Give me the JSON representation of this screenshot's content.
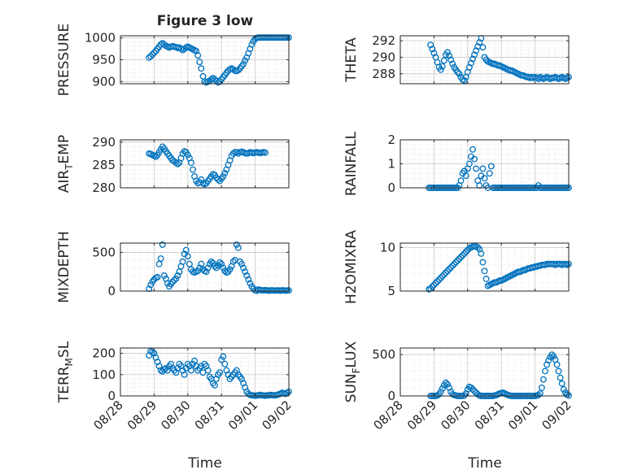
{
  "figure": {
    "title": "Figure 3 low",
    "xlabel": "Time",
    "x_tick_labels": [
      "08/28",
      "08/29",
      "08/30",
      "08/31",
      "09/01",
      "09/02"
    ],
    "marker_color": "#0072BD"
  },
  "chart_data": [
    {
      "type": "scatter",
      "ylabel": "PRESSURE",
      "ylim": [
        895,
        1005
      ],
      "yticks": [
        900,
        950,
        1000
      ],
      "grid": true,
      "x": [
        0.85,
        0.9,
        0.95,
        1.0,
        1.05,
        1.1,
        1.15,
        1.2,
        1.25,
        1.3,
        1.35,
        1.4,
        1.45,
        1.5,
        1.55,
        1.6,
        1.65,
        1.7,
        1.75,
        1.8,
        1.85,
        1.9,
        1.95,
        2.0,
        2.05,
        2.1,
        2.15,
        2.2,
        2.25,
        2.3,
        2.35,
        2.4,
        2.45,
        2.5,
        2.55,
        2.6,
        2.65,
        2.7,
        2.75,
        2.8,
        2.85,
        2.9,
        2.95,
        3.0,
        3.05,
        3.1,
        3.15,
        3.2,
        3.25,
        3.3,
        3.35,
        3.4,
        3.45,
        3.5,
        3.55,
        3.6,
        3.65,
        3.7,
        3.75,
        3.8,
        3.85,
        3.9,
        3.95,
        4.0,
        4.05,
        4.1,
        4.15,
        4.2,
        4.25,
        4.3,
        4.35,
        4.4,
        4.45,
        4.5,
        4.55,
        4.6,
        4.65,
        4.7,
        4.75,
        4.8,
        4.85,
        4.9,
        4.95,
        5.0
      ],
      "y": [
        955,
        958,
        962,
        966,
        970,
        975,
        980,
        985,
        988,
        985,
        982,
        980,
        978,
        980,
        981,
        980,
        979,
        977,
        978,
        975,
        972,
        975,
        978,
        980,
        978,
        976,
        974,
        972,
        970,
        960,
        945,
        930,
        912,
        900,
        898,
        900,
        902,
        905,
        908,
        905,
        902,
        898,
        900,
        905,
        910,
        915,
        920,
        925,
        928,
        930,
        928,
        925,
        924,
        926,
        930,
        935,
        940,
        948,
        955,
        965,
        975,
        985,
        992,
        998,
        1000,
        1001,
        1001,
        1001,
        1001,
        1001,
        1001,
        1001,
        1001,
        1001,
        1001,
        1001,
        1001,
        1001,
        1001,
        1001,
        1001,
        1001,
        1001,
        1001
      ]
    },
    {
      "type": "scatter",
      "ylabel": "THETA",
      "ylim": [
        286.8,
        292.6
      ],
      "yticks": [
        288,
        290,
        292
      ],
      "grid": true,
      "x": [
        0.9,
        0.95,
        1.0,
        1.05,
        1.1,
        1.15,
        1.2,
        1.25,
        1.3,
        1.35,
        1.4,
        1.45,
        1.5,
        1.55,
        1.6,
        1.65,
        1.7,
        1.75,
        1.8,
        1.85,
        1.9,
        1.95,
        2.0,
        2.05,
        2.1,
        2.15,
        2.2,
        2.25,
        2.3,
        2.35,
        2.4,
        2.45,
        2.5,
        2.55,
        2.6,
        2.65,
        2.7,
        2.75,
        2.8,
        2.85,
        2.9,
        2.95,
        3.0,
        3.05,
        3.1,
        3.15,
        3.2,
        3.25,
        3.3,
        3.35,
        3.4,
        3.45,
        3.5,
        3.55,
        3.6,
        3.65,
        3.7,
        3.75,
        3.8,
        3.85,
        3.9,
        3.95,
        4.0,
        4.05,
        4.1,
        4.15,
        4.2,
        4.25,
        4.3,
        4.35,
        4.4,
        4.45,
        4.5,
        4.55,
        4.6,
        4.65,
        4.7,
        4.75,
        4.8,
        4.85,
        4.9,
        4.95,
        5.0
      ],
      "y": [
        291.5,
        291.0,
        290.5,
        290.0,
        289.4,
        288.8,
        288.5,
        288.9,
        289.6,
        290.3,
        290.6,
        290.2,
        289.7,
        289.2,
        288.8,
        288.5,
        288.2,
        288.0,
        287.6,
        287.3,
        287.2,
        287.6,
        288.2,
        288.8,
        289.3,
        289.8,
        290.3,
        290.8,
        291.3,
        291.8,
        292.3,
        291.2,
        290.0,
        289.7,
        289.5,
        289.4,
        289.3,
        289.2,
        289.2,
        289.1,
        289.0,
        289.0,
        288.9,
        288.8,
        288.7,
        288.6,
        288.5,
        288.4,
        288.4,
        288.3,
        288.2,
        288.1,
        288.0,
        287.9,
        287.8,
        287.8,
        287.7,
        287.6,
        287.6,
        287.5,
        287.6,
        287.5,
        287.6,
        287.5,
        287.4,
        287.6,
        287.5,
        287.4,
        287.5,
        287.6,
        287.5,
        287.4,
        287.5,
        287.5,
        287.6,
        287.5,
        287.4,
        287.5,
        287.6,
        287.5,
        287.4,
        287.5,
        287.6
      ]
    },
    {
      "type": "scatter",
      "ylabel": "AIR_TEMP",
      "ylim": [
        280,
        290.5
      ],
      "yticks": [
        280,
        285,
        290
      ],
      "grid": true,
      "x": [
        0.85,
        0.9,
        0.95,
        1.0,
        1.05,
        1.1,
        1.15,
        1.2,
        1.25,
        1.3,
        1.35,
        1.4,
        1.45,
        1.5,
        1.55,
        1.6,
        1.65,
        1.7,
        1.75,
        1.8,
        1.85,
        1.9,
        1.95,
        2.0,
        2.05,
        2.1,
        2.15,
        2.2,
        2.25,
        2.3,
        2.35,
        2.4,
        2.45,
        2.5,
        2.55,
        2.6,
        2.65,
        2.7,
        2.75,
        2.8,
        2.85,
        2.9,
        2.95,
        3.0,
        3.05,
        3.1,
        3.15,
        3.2,
        3.25,
        3.3,
        3.35,
        3.4,
        3.45,
        3.5,
        3.55,
        3.6,
        3.65,
        3.7,
        3.75,
        3.8,
        3.85,
        3.9,
        3.95,
        4.0,
        4.05,
        4.1,
        4.15,
        4.2,
        4.25,
        4.3
      ],
      "y": [
        287.5,
        287.4,
        287.2,
        287.0,
        286.8,
        287.2,
        287.8,
        288.4,
        289.0,
        288.6,
        288.0,
        287.5,
        287.0,
        286.5,
        286.0,
        285.8,
        285.5,
        285.2,
        285.5,
        286.5,
        287.5,
        288.0,
        287.8,
        287.2,
        286.5,
        285.5,
        284.0,
        282.5,
        281.5,
        281.0,
        281.2,
        281.8,
        281.0,
        280.8,
        281.0,
        281.5,
        282.0,
        282.5,
        283.0,
        282.8,
        282.2,
        281.8,
        281.5,
        282.0,
        282.5,
        283.2,
        284.0,
        285.0,
        286.0,
        287.0,
        287.5,
        287.8,
        287.8,
        287.5,
        287.8,
        287.9,
        287.8,
        287.6,
        287.5,
        287.6,
        287.8,
        287.7,
        287.6,
        287.7,
        287.8,
        287.7,
        287.6,
        287.7,
        287.8,
        287.7
      ]
    },
    {
      "type": "scatter",
      "ylabel": "RAINFALL",
      "ylim": [
        0,
        2
      ],
      "yticks": [
        0,
        1,
        2
      ],
      "grid": true,
      "x": [
        0.85,
        0.9,
        0.95,
        1.0,
        1.05,
        1.1,
        1.15,
        1.2,
        1.25,
        1.3,
        1.35,
        1.4,
        1.45,
        1.5,
        1.55,
        1.6,
        1.65,
        1.7,
        1.75,
        1.8,
        1.85,
        1.9,
        1.95,
        2.0,
        2.05,
        2.1,
        2.15,
        2.2,
        2.25,
        2.3,
        2.35,
        2.4,
        2.45,
        2.5,
        2.55,
        2.6,
        2.65,
        2.7,
        2.75,
        2.8,
        2.85,
        2.9,
        2.95,
        3.0,
        3.05,
        3.1,
        3.15,
        3.2,
        3.25,
        3.3,
        3.35,
        3.4,
        3.45,
        3.5,
        3.55,
        3.6,
        3.65,
        3.7,
        3.75,
        3.8,
        3.85,
        3.9,
        3.95,
        4.0,
        4.05,
        4.1,
        4.15,
        4.2,
        4.25,
        4.3,
        4.35,
        4.4,
        4.45,
        4.5,
        4.55,
        4.6,
        4.65,
        4.7,
        4.75,
        4.8,
        4.85,
        4.9,
        4.95,
        5.0
      ],
      "y": [
        0,
        0,
        0,
        0,
        0,
        0,
        0,
        0,
        0,
        0,
        0,
        0,
        0,
        0,
        0,
        0,
        0,
        0,
        0.1,
        0.3,
        0.6,
        0.7,
        0.5,
        0.8,
        1.0,
        1.3,
        1.6,
        1.2,
        0.8,
        0.3,
        0.1,
        0.5,
        0.8,
        0.4,
        0.1,
        0,
        0.6,
        0.9,
        0,
        0,
        0,
        0,
        0,
        0,
        0,
        0,
        0,
        0,
        0,
        0,
        0,
        0,
        0,
        0,
        0,
        0,
        0,
        0,
        0,
        0,
        0,
        0,
        0,
        0,
        0,
        0.1,
        0,
        0,
        0,
        0,
        0,
        0,
        0,
        0,
        0,
        0,
        0,
        0,
        0,
        0,
        0,
        0,
        0,
        0
      ]
    },
    {
      "type": "scatter",
      "ylabel": "MIXDEPTH",
      "ylim": [
        0,
        620
      ],
      "yticks": [
        0,
        500
      ],
      "grid": true,
      "x": [
        0.85,
        0.9,
        0.95,
        1.0,
        1.05,
        1.1,
        1.15,
        1.2,
        1.25,
        1.3,
        1.35,
        1.4,
        1.45,
        1.5,
        1.55,
        1.6,
        1.65,
        1.7,
        1.75,
        1.8,
        1.85,
        1.9,
        1.95,
        2.0,
        2.05,
        2.1,
        2.15,
        2.2,
        2.25,
        2.3,
        2.35,
        2.4,
        2.45,
        2.5,
        2.55,
        2.6,
        2.65,
        2.7,
        2.75,
        2.8,
        2.85,
        2.9,
        2.95,
        3.0,
        3.05,
        3.1,
        3.15,
        3.2,
        3.25,
        3.3,
        3.35,
        3.4,
        3.45,
        3.5,
        3.55,
        3.6,
        3.65,
        3.7,
        3.75,
        3.8,
        3.85,
        3.9,
        3.95,
        4.0,
        4.05,
        4.1,
        4.15,
        4.2,
        4.25,
        4.3,
        4.35,
        4.4,
        4.45,
        4.5,
        4.55,
        4.6,
        4.65,
        4.7,
        4.75,
        4.8,
        4.85,
        4.9,
        4.95,
        5.0
      ],
      "y": [
        30,
        80,
        120,
        150,
        170,
        180,
        350,
        420,
        600,
        200,
        160,
        100,
        60,
        90,
        120,
        140,
        160,
        200,
        250,
        320,
        380,
        480,
        530,
        450,
        350,
        280,
        250,
        240,
        250,
        260,
        300,
        350,
        280,
        260,
        250,
        300,
        350,
        380,
        360,
        320,
        300,
        330,
        370,
        350,
        300,
        260,
        240,
        250,
        280,
        320,
        380,
        400,
        600,
        560,
        380,
        350,
        300,
        250,
        200,
        150,
        100,
        60,
        30,
        10,
        5,
        20,
        15,
        10,
        8,
        12,
        10,
        5,
        8,
        10,
        7,
        6,
        9,
        8,
        5,
        10,
        8,
        6,
        7,
        9
      ]
    },
    {
      "type": "scatter",
      "ylabel": "H2OMIXRA",
      "ylim": [
        5,
        10.5
      ],
      "yticks": [
        5,
        10
      ],
      "grid": true,
      "x": [
        0.85,
        0.9,
        0.95,
        1.0,
        1.05,
        1.1,
        1.15,
        1.2,
        1.25,
        1.3,
        1.35,
        1.4,
        1.45,
        1.5,
        1.55,
        1.6,
        1.65,
        1.7,
        1.75,
        1.8,
        1.85,
        1.9,
        1.95,
        2.0,
        2.05,
        2.1,
        2.15,
        2.2,
        2.25,
        2.3,
        2.35,
        2.4,
        2.45,
        2.5,
        2.55,
        2.6,
        2.65,
        2.7,
        2.75,
        2.8,
        2.85,
        2.9,
        2.95,
        3.0,
        3.05,
        3.1,
        3.15,
        3.2,
        3.25,
        3.3,
        3.35,
        3.4,
        3.45,
        3.5,
        3.55,
        3.6,
        3.65,
        3.7,
        3.75,
        3.8,
        3.85,
        3.9,
        3.95,
        4.0,
        4.05,
        4.1,
        4.15,
        4.2,
        4.25,
        4.3,
        4.35,
        4.4,
        4.45,
        4.5,
        4.55,
        4.6,
        4.65,
        4.7,
        4.75,
        4.8,
        4.85,
        4.9,
        4.95,
        5.0
      ],
      "y": [
        5.2,
        5.3,
        5.5,
        5.7,
        5.9,
        6.1,
        6.3,
        6.5,
        6.7,
        6.9,
        7.1,
        7.3,
        7.5,
        7.7,
        7.9,
        8.1,
        8.3,
        8.5,
        8.7,
        8.9,
        9.1,
        9.3,
        9.5,
        9.7,
        9.9,
        10.0,
        10.1,
        10.2,
        10.1,
        10.0,
        9.8,
        9.3,
        8.3,
        7.3,
        6.4,
        5.6,
        5.7,
        5.8,
        5.9,
        6.0,
        6.0,
        6.1,
        6.2,
        6.2,
        6.3,
        6.4,
        6.5,
        6.6,
        6.7,
        6.8,
        6.9,
        7.0,
        7.1,
        7.2,
        7.2,
        7.3,
        7.4,
        7.4,
        7.5,
        7.6,
        7.6,
        7.7,
        7.7,
        7.8,
        7.8,
        7.9,
        7.9,
        8.0,
        8.0,
        8.0,
        8.1,
        8.1,
        8.1,
        8.1,
        8.1,
        8.0,
        8.1,
        8.1,
        8.1,
        8.0,
        8.1,
        8.1,
        8.0,
        8.1
      ]
    },
    {
      "type": "scatter",
      "ylabel": "TERR_MSL",
      "ylim": [
        0,
        225
      ],
      "yticks": [
        0,
        100,
        200
      ],
      "grid": true,
      "x": [
        0.85,
        0.9,
        0.95,
        1.0,
        1.05,
        1.1,
        1.15,
        1.2,
        1.25,
        1.3,
        1.35,
        1.4,
        1.45,
        1.5,
        1.55,
        1.6,
        1.65,
        1.7,
        1.75,
        1.8,
        1.85,
        1.9,
        1.95,
        2.0,
        2.05,
        2.1,
        2.15,
        2.2,
        2.25,
        2.3,
        2.35,
        2.4,
        2.45,
        2.5,
        2.55,
        2.6,
        2.65,
        2.7,
        2.75,
        2.8,
        2.85,
        2.9,
        2.95,
        3.0,
        3.05,
        3.1,
        3.15,
        3.2,
        3.25,
        3.3,
        3.35,
        3.4,
        3.45,
        3.5,
        3.55,
        3.6,
        3.65,
        3.7,
        3.75,
        3.8,
        3.85,
        3.9,
        3.95,
        4.0,
        4.05,
        4.1,
        4.15,
        4.2,
        4.25,
        4.3,
        4.35,
        4.4,
        4.45,
        4.5,
        4.55,
        4.6,
        4.65,
        4.7,
        4.75,
        4.8,
        4.85,
        4.9,
        4.95,
        5.0
      ],
      "y": [
        190,
        210,
        205,
        200,
        180,
        160,
        140,
        120,
        115,
        125,
        130,
        120,
        140,
        150,
        130,
        120,
        110,
        130,
        150,
        140,
        120,
        100,
        130,
        150,
        140,
        120,
        150,
        165,
        140,
        120,
        130,
        140,
        110,
        150,
        140,
        120,
        90,
        80,
        60,
        50,
        80,
        100,
        110,
        170,
        185,
        150,
        120,
        100,
        80,
        90,
        100,
        110,
        120,
        100,
        90,
        80,
        60,
        40,
        20,
        10,
        5,
        3,
        2,
        1,
        2,
        3,
        5,
        3,
        2,
        1,
        3,
        2,
        5,
        4,
        3,
        2,
        5,
        8,
        10,
        15,
        12,
        10,
        15,
        20
      ]
    },
    {
      "type": "scatter",
      "ylabel": "SUN_FLUX",
      "ylim": [
        0,
        580
      ],
      "yticks": [
        0,
        500
      ],
      "grid": true,
      "x": [
        0.9,
        0.95,
        1.0,
        1.05,
        1.1,
        1.15,
        1.2,
        1.25,
        1.3,
        1.35,
        1.4,
        1.45,
        1.5,
        1.55,
        1.6,
        1.65,
        1.7,
        1.75,
        1.8,
        1.85,
        1.9,
        1.95,
        2.0,
        2.05,
        2.1,
        2.15,
        2.2,
        2.25,
        2.3,
        2.35,
        2.4,
        2.45,
        2.5,
        2.55,
        2.6,
        2.65,
        2.7,
        2.75,
        2.8,
        2.85,
        2.9,
        2.95,
        3.0,
        3.05,
        3.1,
        3.15,
        3.2,
        3.25,
        3.3,
        3.35,
        3.4,
        3.45,
        3.5,
        3.55,
        3.6,
        3.65,
        3.7,
        3.75,
        3.8,
        3.85,
        3.9,
        3.95,
        4.0,
        4.05,
        4.1,
        4.15,
        4.2,
        4.25,
        4.3,
        4.35,
        4.4,
        4.45,
        4.5,
        4.55,
        4.6,
        4.65,
        4.7,
        4.75,
        4.8,
        4.85,
        4.9,
        4.95,
        5.0
      ],
      "y": [
        0,
        0,
        0,
        0,
        5,
        20,
        50,
        90,
        130,
        160,
        140,
        100,
        50,
        20,
        10,
        5,
        0,
        0,
        0,
        0,
        5,
        30,
        80,
        110,
        100,
        80,
        60,
        40,
        20,
        5,
        0,
        0,
        0,
        0,
        0,
        0,
        0,
        0,
        5,
        10,
        20,
        30,
        35,
        40,
        30,
        20,
        10,
        5,
        0,
        0,
        0,
        0,
        0,
        0,
        0,
        0,
        0,
        0,
        0,
        0,
        0,
        0,
        0,
        5,
        10,
        30,
        100,
        200,
        300,
        380,
        430,
        470,
        500,
        480,
        440,
        380,
        300,
        220,
        150,
        80,
        40,
        15,
        5
      ]
    }
  ]
}
